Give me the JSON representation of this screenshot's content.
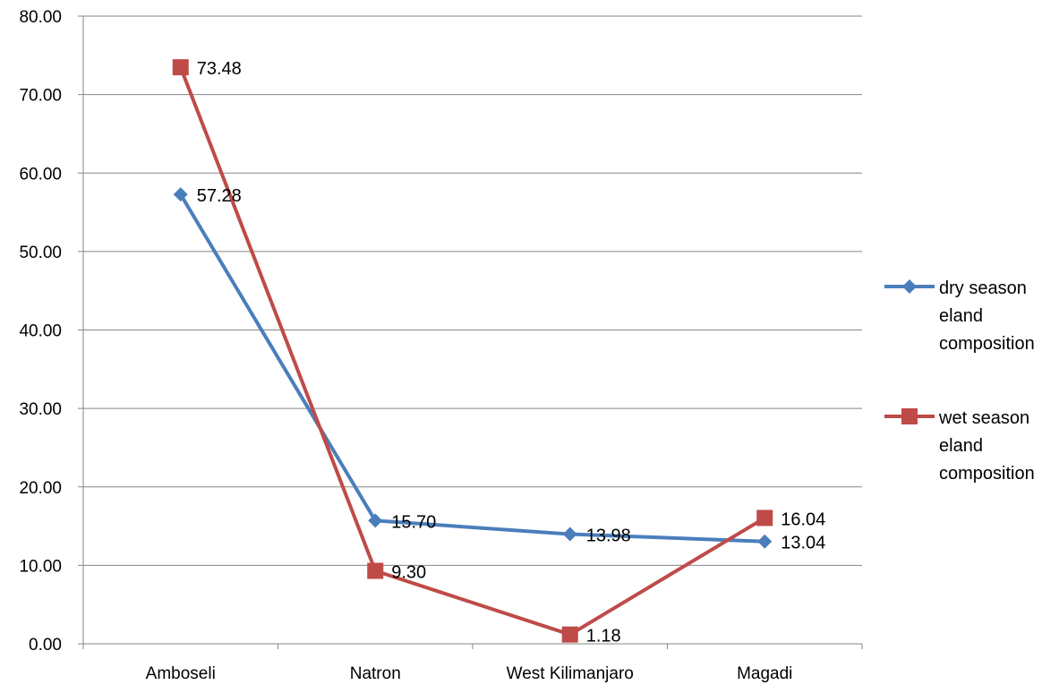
{
  "chart_data": {
    "type": "line",
    "categories": [
      "Amboseli",
      "Natron",
      "West Kilimanjaro",
      "Magadi"
    ],
    "ylim": [
      0,
      80
    ],
    "yticks": [
      "0.00",
      "10.00",
      "20.00",
      "30.00",
      "40.00",
      "50.00",
      "60.00",
      "70.00",
      "80.00"
    ],
    "grid": true,
    "legend_position": "right",
    "series": [
      {
        "name": [
          "dry season",
          "eland",
          "composition"
        ],
        "values": [
          57.28,
          15.7,
          13.98,
          13.04
        ],
        "labels": [
          "57.28",
          "15.70",
          "13.98",
          "13.04"
        ],
        "color": "#4A7EBB",
        "marker": "diamond"
      },
      {
        "name": [
          "wet season",
          "eland",
          "composition"
        ],
        "values": [
          73.48,
          9.3,
          1.18,
          16.04
        ],
        "labels": [
          "73.48",
          "9.30",
          "1.18",
          "16.04"
        ],
        "color": "#BE4B48",
        "marker": "square"
      }
    ]
  }
}
